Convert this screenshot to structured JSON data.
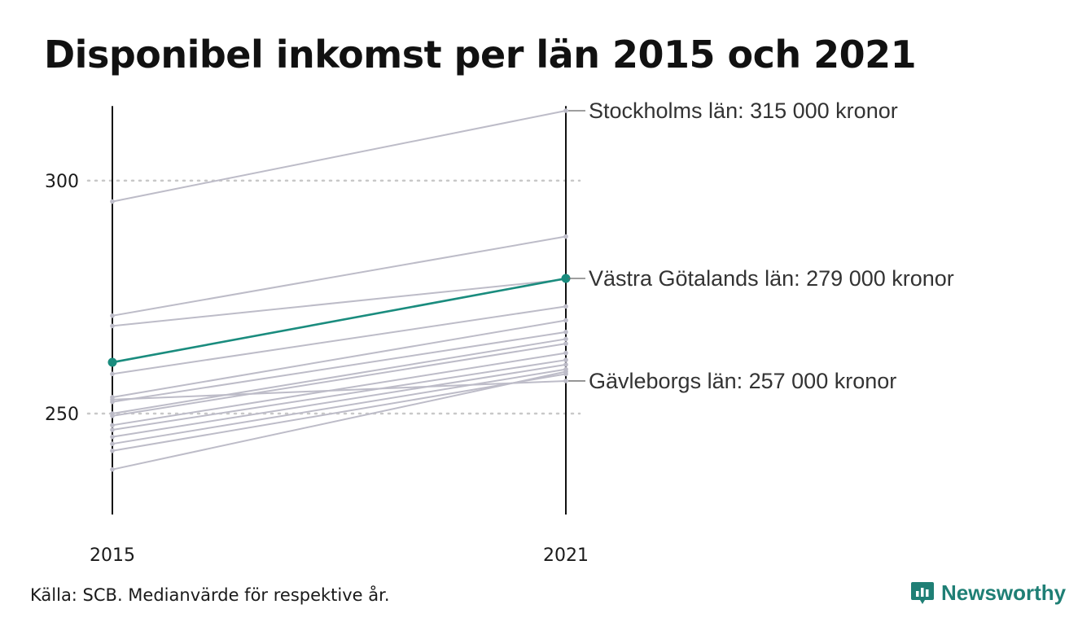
{
  "title": "Disponibel inkomst per län 2015 och 2021",
  "source": "Källa: SCB. Medianvärde för respektive år.",
  "brand": {
    "name": "Newsworthy",
    "icon": "newsworthy-logo-icon"
  },
  "colors": {
    "background": "#ffffff",
    "other": "#bdbcc8",
    "highlight": "#1a8c7e",
    "axis": "#111111",
    "grid": "#c8c8c8",
    "brand": "#1f7f75"
  },
  "chart_data": {
    "type": "line",
    "title": "Disponibel inkomst per län 2015 och 2021",
    "xlabel": "",
    "ylabel": "",
    "categories": [
      "2015",
      "2021"
    ],
    "ylim": [
      229,
      316
    ],
    "yticks": [
      250,
      300
    ],
    "grid": "horizontal dotted",
    "legend": "none",
    "highlight": "Västra Götalands län",
    "series": [
      {
        "values": [
          295.5,
          315.0
        ],
        "role": "labeled",
        "label": "Stockholms län: 315 000 kronor"
      },
      {
        "values": [
          261.0,
          279.0
        ],
        "role": "highlight",
        "label": "Västra Götalands län: 279 000 kronor"
      },
      {
        "values": [
          253.0,
          257.0
        ],
        "role": "labeled",
        "label": "Gävleborgs län: 257 000 kronor"
      },
      {
        "values": [
          271.0,
          288.0
        ],
        "role": "other"
      },
      {
        "values": [
          268.8,
          278.8
        ],
        "role": "other"
      },
      {
        "values": [
          258.5,
          273.0
        ],
        "role": "other"
      },
      {
        "values": [
          253.5,
          270.0
        ],
        "role": "other"
      },
      {
        "values": [
          252.5,
          267.5
        ],
        "role": "other"
      },
      {
        "values": [
          250.0,
          266.0
        ],
        "role": "other"
      },
      {
        "values": [
          249.5,
          265.0
        ],
        "role": "other"
      },
      {
        "values": [
          247.5,
          263.0
        ],
        "role": "other"
      },
      {
        "values": [
          246.5,
          261.5
        ],
        "role": "other"
      },
      {
        "values": [
          245.0,
          260.5
        ],
        "role": "other"
      },
      {
        "values": [
          243.5,
          259.5
        ],
        "role": "other"
      },
      {
        "values": [
          242.0,
          258.5
        ],
        "role": "other"
      },
      {
        "values": [
          238.0,
          259.0
        ],
        "role": "other"
      }
    ]
  }
}
